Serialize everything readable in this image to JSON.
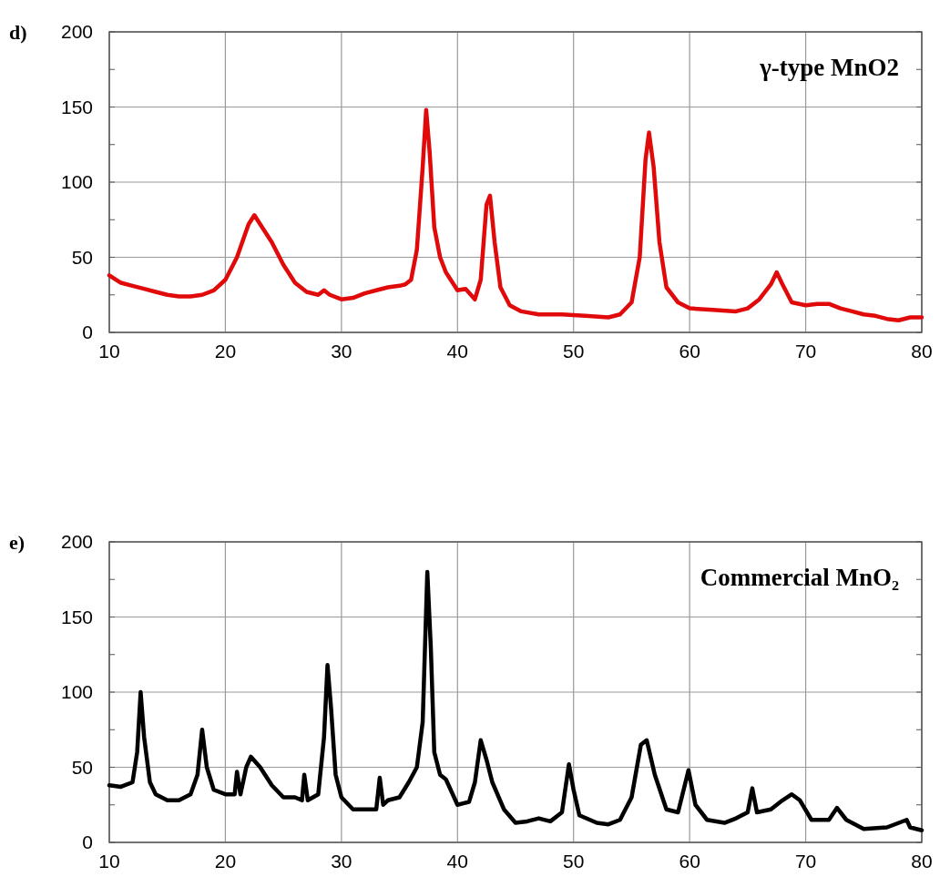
{
  "chart_data": [
    {
      "type": "line",
      "title": "d)",
      "xlim": [
        10,
        80
      ],
      "xticks": [
        10,
        20,
        30,
        40,
        50,
        60,
        70,
        80
      ],
      "ylim": [
        0,
        200
      ],
      "yticks": [
        0,
        {
          "value": 25,
          "label": null
        },
        50,
        {
          "value": 75,
          "label": null
        },
        100,
        {
          "value": 125,
          "label": null
        },
        150,
        {
          "value": 175,
          "label": null
        },
        200
      ],
      "grid": true,
      "series": [
        {
          "name": "γ-type MnO2",
          "color": "#e00a0a",
          "x": [
            10,
            11,
            12,
            13,
            14,
            15,
            16,
            17,
            18,
            19,
            20,
            21,
            22,
            22.5,
            23,
            24,
            25,
            26,
            27,
            28,
            28.5,
            29,
            30,
            31,
            32,
            33,
            34,
            35,
            35.5,
            36,
            36.5,
            37,
            37.3,
            37.6,
            38,
            38.5,
            39,
            40,
            40.7,
            41.5,
            42,
            42.5,
            42.8,
            43.2,
            43.7,
            44.5,
            45.5,
            47,
            49,
            51,
            53,
            54,
            55,
            55.7,
            56.2,
            56.5,
            56.9,
            57.4,
            58,
            59,
            60,
            62,
            64,
            65,
            66,
            67,
            67.5,
            68,
            68.8,
            70,
            71,
            72,
            73,
            74,
            75,
            76,
            77,
            78,
            79,
            80
          ],
          "values": [
            38,
            33,
            31,
            29,
            27,
            25,
            24,
            24,
            25,
            28,
            35,
            50,
            72,
            78,
            72,
            60,
            45,
            33,
            27,
            25,
            28,
            25,
            22,
            23,
            26,
            28,
            30,
            31,
            32,
            35,
            55,
            110,
            148,
            120,
            70,
            50,
            40,
            28,
            29,
            22,
            35,
            85,
            91,
            60,
            30,
            18,
            14,
            12,
            12,
            11,
            10,
            12,
            20,
            50,
            115,
            133,
            110,
            60,
            30,
            20,
            16,
            15,
            14,
            16,
            22,
            32,
            40,
            32,
            20,
            18,
            19,
            19,
            16,
            14,
            12,
            11,
            9,
            8,
            10,
            10
          ]
        }
      ]
    },
    {
      "type": "line",
      "title": "e)",
      "xlim": [
        10,
        80
      ],
      "xticks": [
        10,
        20,
        30,
        40,
        50,
        60,
        70,
        80
      ],
      "ylim": [
        0,
        200
      ],
      "yticks": [
        0,
        {
          "value": 25,
          "label": null
        },
        50,
        {
          "value": 75,
          "label": null
        },
        100,
        {
          "value": 125,
          "label": null
        },
        150,
        {
          "value": 175,
          "label": null
        },
        200
      ],
      "grid": true,
      "series": [
        {
          "name": "Commercial MnO₂",
          "color": "#000000",
          "x": [
            10,
            11,
            12,
            12.4,
            12.7,
            13,
            13.5,
            14,
            15,
            16,
            17,
            17.6,
            18,
            18.4,
            19,
            20,
            20.8,
            21,
            21.3,
            21.8,
            22.2,
            23,
            24,
            25,
            26,
            26.6,
            26.8,
            27.1,
            28,
            28.5,
            28.8,
            29.1,
            29.5,
            30,
            31,
            32,
            33,
            33.3,
            33.6,
            34,
            35,
            35.8,
            36.5,
            37,
            37.4,
            37.7,
            38,
            38.5,
            39,
            40,
            41,
            41.5,
            42,
            42.5,
            43,
            44,
            45,
            46,
            47,
            48,
            49,
            49.6,
            50,
            50.5,
            52,
            53,
            54,
            55,
            55.8,
            56.3,
            57,
            58,
            59,
            59.9,
            60.5,
            61.5,
            63,
            64,
            65,
            65.4,
            65.8,
            67,
            68,
            68.8,
            69.5,
            70.5,
            72,
            72.7,
            73.5,
            75,
            77,
            78.7,
            79,
            80
          ],
          "values": [
            38,
            37,
            40,
            60,
            100,
            70,
            40,
            32,
            28,
            28,
            32,
            45,
            75,
            50,
            35,
            32,
            32,
            47,
            32,
            50,
            57,
            50,
            38,
            30,
            30,
            28,
            45,
            28,
            32,
            70,
            118,
            90,
            45,
            30,
            22,
            22,
            22,
            43,
            25,
            28,
            30,
            40,
            50,
            80,
            180,
            130,
            60,
            45,
            42,
            25,
            27,
            40,
            68,
            55,
            40,
            22,
            13,
            14,
            16,
            14,
            20,
            52,
            35,
            18,
            13,
            12,
            15,
            30,
            65,
            68,
            45,
            22,
            20,
            48,
            25,
            15,
            13,
            16,
            20,
            36,
            20,
            22,
            28,
            32,
            28,
            15,
            15,
            23,
            15,
            9,
            10,
            15,
            10,
            8
          ]
        }
      ]
    }
  ]
}
